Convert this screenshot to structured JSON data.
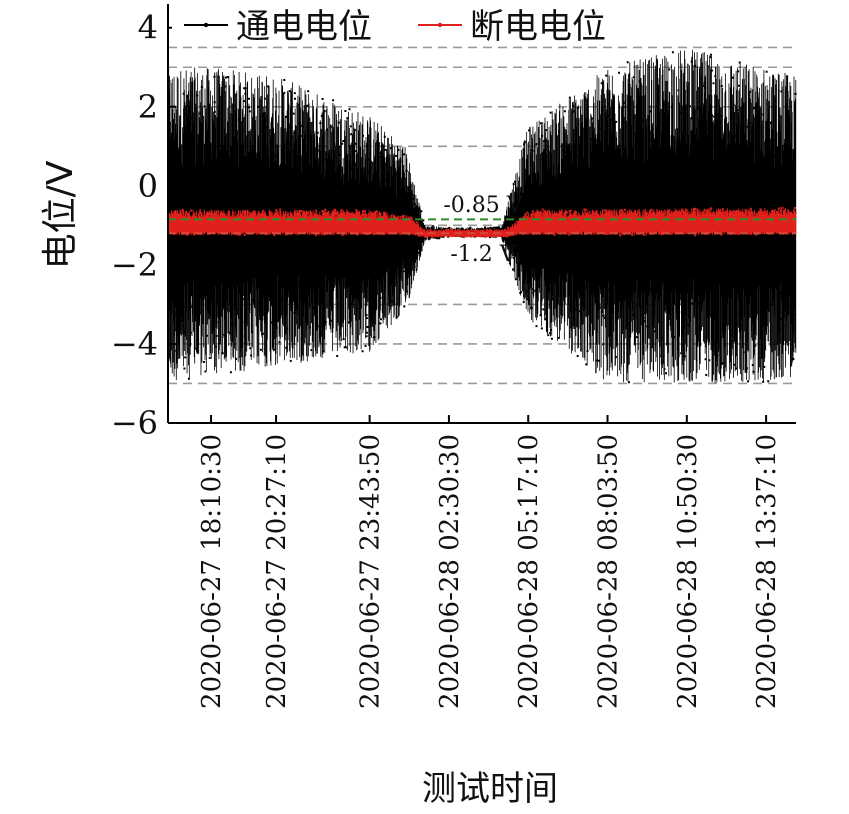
{
  "chart_data": {
    "type": "line",
    "xlabel": "测试时间",
    "ylabel": "电位/V",
    "ylim": [
      -6,
      4.6
    ],
    "yticks": [
      4,
      2,
      0,
      -2,
      -4,
      -6
    ],
    "ytick_labels": [
      "4",
      "2",
      "0",
      "−2",
      "−4",
      "−6"
    ],
    "x_start": "2020-06-27 16:40:00",
    "x_end": "2020-06-28 14:40:00",
    "xticks": [
      {
        "t": "2020-06-27 18:10:30",
        "label": "2020-06-27 18:10:30"
      },
      {
        "t": "2020-06-27 20:27:10",
        "label": "2020-06-27 20:27:10"
      },
      {
        "t": "2020-06-27 23:43:50",
        "label": "2020-06-27 23:43:50"
      },
      {
        "t": "2020-06-28 02:30:30",
        "label": "2020-06-28 02:30:30"
      },
      {
        "t": "2020-06-28 05:17:10",
        "label": "2020-06-28 05:17:10"
      },
      {
        "t": "2020-06-28 08:03:50",
        "label": "2020-06-28 08:03:50"
      },
      {
        "t": "2020-06-28 10:50:30",
        "label": "2020-06-28 10:50:30"
      },
      {
        "t": "2020-06-28 13:37:10",
        "label": "2020-06-28 13:37:10"
      }
    ],
    "grid": {
      "horizontal_dashed_y": [
        3.5,
        3,
        2,
        1,
        -1,
        -3,
        -4,
        -5
      ]
    },
    "legend": {
      "position": "top",
      "entries": [
        "通电电位",
        "断电电位"
      ]
    },
    "series": [
      {
        "name": "通电电位",
        "color": "#000000",
        "envelope": [
          {
            "t": "2020-06-27 16:40:00",
            "min": -5.0,
            "max": 3.0
          },
          {
            "t": "2020-06-27 18:10:30",
            "min": -4.8,
            "max": 3.0
          },
          {
            "t": "2020-06-27 20:27:10",
            "min": -4.6,
            "max": 2.8
          },
          {
            "t": "2020-06-27 23:43:50",
            "min": -4.2,
            "max": 1.8
          },
          {
            "t": "2020-06-28 01:00:00",
            "min": -3.2,
            "max": 1.0
          },
          {
            "t": "2020-06-28 01:40:00",
            "min": -1.4,
            "max": -1.0
          },
          {
            "t": "2020-06-28 02:30:30",
            "min": -1.3,
            "max": -1.05
          },
          {
            "t": "2020-06-28 04:20:00",
            "min": -1.3,
            "max": -1.05
          },
          {
            "t": "2020-06-28 05:00:00",
            "min": -2.8,
            "max": 0.8
          },
          {
            "t": "2020-06-28 05:17:10",
            "min": -3.4,
            "max": 1.5
          },
          {
            "t": "2020-06-28 08:03:50",
            "min": -5.0,
            "max": 3.0
          },
          {
            "t": "2020-06-28 10:50:30",
            "min": -5.0,
            "max": 3.5
          },
          {
            "t": "2020-06-28 13:37:10",
            "min": -5.0,
            "max": 3.0
          },
          {
            "t": "2020-06-28 14:40:00",
            "min": -4.8,
            "max": 2.8
          }
        ]
      },
      {
        "name": "断电电位",
        "color": "#e0201c",
        "envelope": [
          {
            "t": "2020-06-27 16:40:00",
            "min": -1.25,
            "max": -0.6
          },
          {
            "t": "2020-06-27 23:43:50",
            "min": -1.25,
            "max": -0.6
          },
          {
            "t": "2020-06-28 01:10:00",
            "min": -1.25,
            "max": -0.75
          },
          {
            "t": "2020-06-28 01:40:00",
            "min": -1.3,
            "max": -1.1
          },
          {
            "t": "2020-06-28 02:30:30",
            "min": -1.3,
            "max": -1.1
          },
          {
            "t": "2020-06-28 04:30:00",
            "min": -1.3,
            "max": -1.1
          },
          {
            "t": "2020-06-28 05:00:00",
            "min": -1.25,
            "max": -0.8
          },
          {
            "t": "2020-06-28 05:17:10",
            "min": -1.25,
            "max": -0.6
          },
          {
            "t": "2020-06-28 14:40:00",
            "min": -1.25,
            "max": -0.55
          }
        ]
      }
    ],
    "reference_lines": [
      {
        "y": -0.85,
        "label": "-0.85 V",
        "color": "#2e8b2e"
      },
      {
        "y": -1.2,
        "label": "-1.2 V",
        "color": "#d44a3a"
      }
    ]
  }
}
